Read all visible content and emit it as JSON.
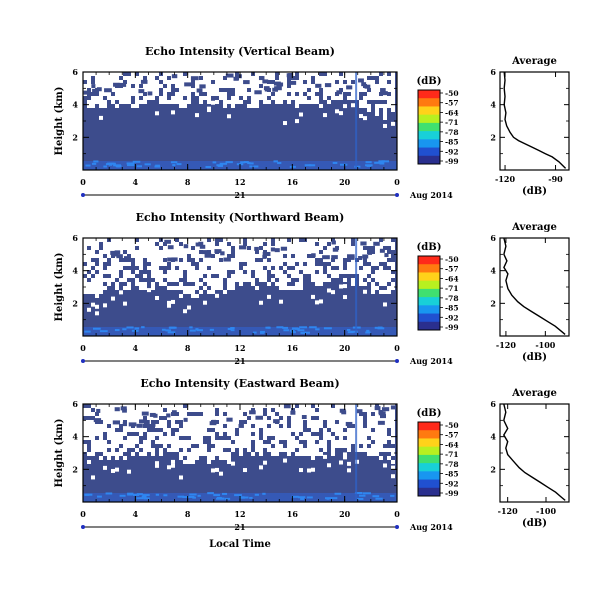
{
  "chart_data": [
    {
      "type": "heatmap",
      "title": "Echo Intensity (Vertical Beam)",
      "ylabel": "Height (km)",
      "xlabel": "",
      "x_ticks": [
        "0",
        "4",
        "8",
        "12",
        "16",
        "20",
        "0"
      ],
      "y_ticks": [
        "6",
        "4",
        "2"
      ],
      "xlim": [
        0,
        24
      ],
      "ylim": [
        0,
        6
      ],
      "date_day": "21",
      "date_label": "Aug 2014",
      "colorbar": {
        "unit": "(dB)",
        "ticks": [
          "-50",
          "-57",
          "-64",
          "-71",
          "-78",
          "-85",
          "-92",
          "-99"
        ]
      },
      "echo_top_km": [
        3.6,
        3.7,
        3.8,
        3.6,
        3.9,
        4.0,
        3.8,
        3.7,
        3.8,
        4.1,
        4.2,
        3.9,
        3.8,
        3.9,
        4.0,
        3.8,
        3.7,
        3.8,
        3.9,
        4.2,
        4.4,
        3.9,
        3.5,
        3.3,
        3.2
      ],
      "average_profile": {
        "title": "Average",
        "xlabel": "(dB)",
        "x_ticks": [
          "-120",
          "-90"
        ],
        "xlim": [
          -123,
          -82
        ],
        "y_ticks": [
          "6",
          "4",
          "2"
        ],
        "ylim": [
          0,
          6
        ],
        "points": [
          [
            -84,
            0.1
          ],
          [
            -86,
            0.3
          ],
          [
            -88,
            0.5
          ],
          [
            -92,
            0.8
          ],
          [
            -96,
            1.0
          ],
          [
            -100,
            1.2
          ],
          [
            -104,
            1.4
          ],
          [
            -108,
            1.6
          ],
          [
            -112,
            1.8
          ],
          [
            -115,
            2.0
          ],
          [
            -117,
            2.3
          ],
          [
            -119,
            2.7
          ],
          [
            -120,
            3.1
          ],
          [
            -119.5,
            3.5
          ],
          [
            -120.5,
            4.0
          ],
          [
            -120,
            4.5
          ],
          [
            -120.5,
            5.0
          ],
          [
            -120,
            5.5
          ],
          [
            -120.5,
            6.0
          ]
        ]
      }
    },
    {
      "type": "heatmap",
      "title": "Echo Intensity (Northward Beam)",
      "ylabel": "Height (km)",
      "xlabel": "",
      "x_ticks": [
        "0",
        "4",
        "8",
        "12",
        "16",
        "20",
        "0"
      ],
      "y_ticks": [
        "6",
        "4",
        "2"
      ],
      "xlim": [
        0,
        24
      ],
      "ylim": [
        0,
        6
      ],
      "date_day": "21",
      "date_label": "Aug 2014",
      "colorbar": {
        "unit": "(dB)",
        "ticks": [
          "-50",
          "-57",
          "-64",
          "-71",
          "-78",
          "-85",
          "-92",
          "-99"
        ]
      },
      "echo_top_km": [
        2.3,
        2.5,
        2.8,
        2.6,
        2.7,
        2.9,
        3.0,
        2.6,
        2.4,
        2.5,
        2.7,
        2.6,
        2.8,
        2.9,
        3.0,
        2.8,
        2.6,
        2.7,
        2.9,
        3.2,
        3.4,
        3.0,
        2.6,
        2.4,
        2.3
      ],
      "average_profile": {
        "title": "Average",
        "xlabel": "(dB)",
        "x_ticks": [
          "-120",
          "-100"
        ],
        "xlim": [
          -123,
          -88
        ],
        "y_ticks": [
          "6",
          "4",
          "2"
        ],
        "ylim": [
          0,
          6
        ],
        "points": [
          [
            -90,
            0.1
          ],
          [
            -92,
            0.3
          ],
          [
            -95,
            0.6
          ],
          [
            -99,
            0.9
          ],
          [
            -103,
            1.2
          ],
          [
            -107,
            1.5
          ],
          [
            -111,
            1.8
          ],
          [
            -114,
            2.1
          ],
          [
            -117,
            2.5
          ],
          [
            -119,
            2.9
          ],
          [
            -120,
            3.4
          ],
          [
            -119,
            3.8
          ],
          [
            -121,
            4.2
          ],
          [
            -119.5,
            4.6
          ],
          [
            -121,
            5.0
          ],
          [
            -120,
            5.5
          ],
          [
            -121,
            6.0
          ]
        ]
      }
    },
    {
      "type": "heatmap",
      "title": "Echo Intensity (Eastward Beam)",
      "ylabel": "Height (km)",
      "xlabel": "Local Time",
      "x_ticks": [
        "0",
        "4",
        "8",
        "12",
        "16",
        "20",
        "0"
      ],
      "y_ticks": [
        "6",
        "4",
        "2"
      ],
      "xlim": [
        0,
        24
      ],
      "ylim": [
        0,
        6
      ],
      "date_day": "21",
      "date_label": "Aug 2014",
      "colorbar": {
        "unit": "(dB)",
        "ticks": [
          "-50",
          "-57",
          "-64",
          "-71",
          "-78",
          "-85",
          "-92",
          "-99"
        ]
      },
      "echo_top_km": [
        2.2,
        2.4,
        2.6,
        2.5,
        2.6,
        2.8,
        2.9,
        2.5,
        2.3,
        2.4,
        2.6,
        2.5,
        2.7,
        2.8,
        2.9,
        2.7,
        2.5,
        2.6,
        2.8,
        3.0,
        3.2,
        2.9,
        2.5,
        2.3,
        2.2
      ],
      "average_profile": {
        "title": "Average",
        "xlabel": "(dB)",
        "x_ticks": [
          "-120",
          "-100"
        ],
        "xlim": [
          -124,
          -88
        ],
        "y_ticks": [
          "6",
          "4",
          "2"
        ],
        "ylim": [
          0,
          6
        ],
        "points": [
          [
            -90,
            0.1
          ],
          [
            -92,
            0.3
          ],
          [
            -95,
            0.6
          ],
          [
            -99,
            0.9
          ],
          [
            -103,
            1.2
          ],
          [
            -107,
            1.5
          ],
          [
            -111,
            1.8
          ],
          [
            -114,
            2.1
          ],
          [
            -117,
            2.5
          ],
          [
            -120,
            2.9
          ],
          [
            -121,
            3.3
          ],
          [
            -120,
            3.7
          ],
          [
            -122,
            4.1
          ],
          [
            -120,
            4.5
          ],
          [
            -122,
            5.0
          ],
          [
            -121,
            5.5
          ],
          [
            -122,
            6.0
          ]
        ]
      }
    }
  ],
  "colors": {
    "background_echo": "#3d4c8c",
    "noise_echo": "#2e3f9a",
    "surface_echo": "#2f64d8",
    "colorbar": [
      "#ff2a1a",
      "#ff7a10",
      "#ffd21a",
      "#b8f020",
      "#40e070",
      "#18d0d8",
      "#1896f0",
      "#2050d0",
      "#2a2f8e"
    ]
  }
}
